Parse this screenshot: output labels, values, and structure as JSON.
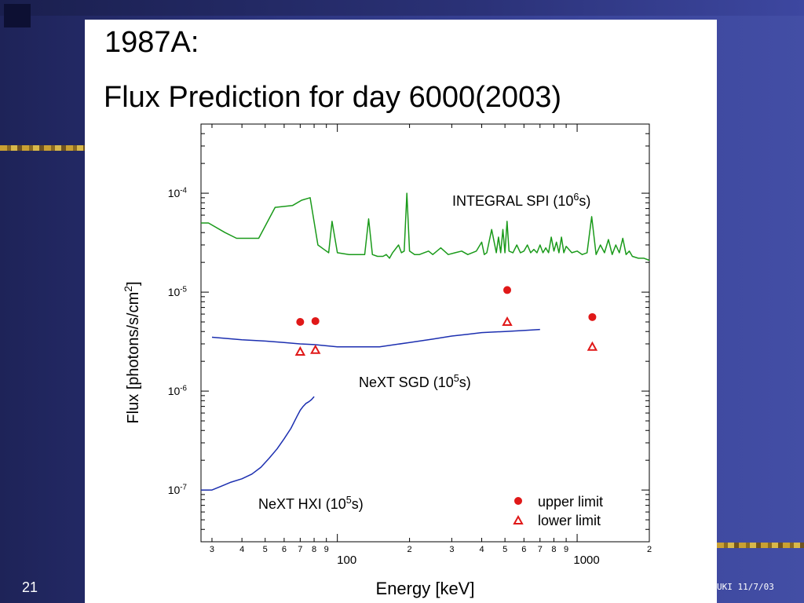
{
  "slide": {
    "title_line1": "1987A:",
    "title_line2": "Flux Prediction for day 6000(2003)",
    "page_number": "21",
    "footer": "UKI  11/7/03"
  },
  "chart_data": {
    "type": "scatter",
    "xscale": "log",
    "yscale": "log",
    "xlim": [
      27,
      2000
    ],
    "ylim": [
      3e-08,
      0.0005
    ],
    "xlabel": "Energy [keV]",
    "ylabel": "Flux [photons/s/cm",
    "ylabel_sup": "2",
    "ylabel_suffix": "]",
    "y_ticks": [
      {
        "value": 0.0001,
        "base": "10",
        "exp": "-4"
      },
      {
        "value": 1e-05,
        "base": "10",
        "exp": "-5"
      },
      {
        "value": 1e-06,
        "base": "10",
        "exp": "-6"
      },
      {
        "value": 1e-07,
        "base": "10",
        "exp": "-7"
      }
    ],
    "x_minor_labels": [
      {
        "value": 30,
        "label": "3"
      },
      {
        "value": 40,
        "label": "4"
      },
      {
        "value": 50,
        "label": "5"
      },
      {
        "value": 60,
        "label": "6"
      },
      {
        "value": 70,
        "label": "7"
      },
      {
        "value": 80,
        "label": "8"
      },
      {
        "value": 90,
        "label": "9"
      },
      {
        "value": 200,
        "label": "2"
      },
      {
        "value": 300,
        "label": "3"
      },
      {
        "value": 400,
        "label": "4"
      },
      {
        "value": 500,
        "label": "5"
      },
      {
        "value": 600,
        "label": "6"
      },
      {
        "value": 700,
        "label": "7"
      },
      {
        "value": 800,
        "label": "8"
      },
      {
        "value": 900,
        "label": "9"
      },
      {
        "value": 2000,
        "label": "2"
      }
    ],
    "x_major_labels": [
      {
        "value": 100,
        "label": "100"
      },
      {
        "value": 1000,
        "label": "1000"
      }
    ],
    "colors": {
      "integral": "#1a9a1a",
      "sgd": "#1c2fb0",
      "hxi": "#1c2fb0",
      "points": "#e01818"
    },
    "series": [
      {
        "name": "INTEGRAL SPI (10",
        "name_sup": "6",
        "name_suffix": "s)",
        "kind": "line",
        "x": [
          27,
          29,
          34,
          38,
          43,
          47,
          55,
          65,
          71,
          77,
          83,
          88,
          92,
          95,
          100,
          112,
          130,
          135,
          140,
          147,
          155,
          160,
          165,
          170,
          180,
          185,
          190,
          195,
          200,
          210,
          220,
          230,
          240,
          250,
          270,
          290,
          310,
          330,
          350,
          380,
          400,
          410,
          420,
          440,
          460,
          470,
          480,
          490,
          500,
          510,
          520,
          540,
          560,
          580,
          600,
          620,
          640,
          660,
          680,
          700,
          720,
          740,
          760,
          780,
          800,
          820,
          840,
          860,
          880,
          900,
          950,
          1000,
          1050,
          1100,
          1150,
          1200,
          1250,
          1300,
          1350,
          1400,
          1450,
          1500,
          1550,
          1600,
          1650,
          1700,
          1800,
          1900,
          2000
        ],
        "y": [
          5e-05,
          5e-05,
          4e-05,
          3.5e-05,
          3.5e-05,
          3.5e-05,
          7.2e-05,
          7.5e-05,
          8.5e-05,
          9e-05,
          3e-05,
          2.7e-05,
          2.5e-05,
          5.2e-05,
          2.5e-05,
          2.4e-05,
          2.4e-05,
          5.5e-05,
          2.4e-05,
          2.3e-05,
          2.3e-05,
          2.4e-05,
          2.2e-05,
          2.5e-05,
          3e-05,
          2.5e-05,
          2.6e-05,
          0.0001,
          2.6e-05,
          2.4e-05,
          2.4e-05,
          2.5e-05,
          2.6e-05,
          2.4e-05,
          2.8e-05,
          2.4e-05,
          2.5e-05,
          2.6e-05,
          2.4e-05,
          2.6e-05,
          3.2e-05,
          2.4e-05,
          2.5e-05,
          4.3e-05,
          2.5e-05,
          3.6e-05,
          2.5e-05,
          4.3e-05,
          2.5e-05,
          5.2e-05,
          2.6e-05,
          2.5e-05,
          3e-05,
          2.5e-05,
          2.6e-05,
          3e-05,
          2.5e-05,
          2.7e-05,
          2.5e-05,
          3e-05,
          2.5e-05,
          2.8e-05,
          2.5e-05,
          3.6e-05,
          2.6e-05,
          3.2e-05,
          2.5e-05,
          3.6e-05,
          2.5e-05,
          2.9e-05,
          2.5e-05,
          2.6e-05,
          2.4e-05,
          2.5e-05,
          5.8e-05,
          2.4e-05,
          3e-05,
          2.5e-05,
          3.4e-05,
          2.4e-05,
          3e-05,
          2.5e-05,
          3.5e-05,
          2.4e-05,
          2.6e-05,
          2.3e-05,
          2.2e-05,
          2.2e-05,
          2.1e-05
        ]
      },
      {
        "name": "NeXT SGD (10",
        "name_sup": "5",
        "name_suffix": "s)",
        "kind": "line",
        "x": [
          30,
          40,
          50,
          60,
          70,
          80,
          100,
          120,
          150,
          200,
          250,
          300,
          350,
          400,
          500,
          600,
          700
        ],
        "y": [
          3.5e-06,
          3.3e-06,
          3.2e-06,
          3.1e-06,
          3e-06,
          2.95e-06,
          2.8e-06,
          2.8e-06,
          2.8e-06,
          3.1e-06,
          3.35e-06,
          3.6e-06,
          3.75e-06,
          3.9e-06,
          4e-06,
          4.1e-06,
          4.2e-06
        ]
      },
      {
        "name": "NeXT HXI (10",
        "name_sup": "5",
        "name_suffix": "s)",
        "kind": "line",
        "x": [
          27,
          30,
          33,
          36,
          40,
          44,
          48,
          52,
          56,
          60,
          64,
          68,
          70,
          72,
          74,
          76,
          78,
          80
        ],
        "y": [
          1e-07,
          1e-07,
          1.1e-07,
          1.2e-07,
          1.3e-07,
          1.45e-07,
          1.7e-07,
          2.1e-07,
          2.6e-07,
          3.3e-07,
          4.2e-07,
          5.6e-07,
          6.4e-07,
          7e-07,
          7.5e-07,
          7.8e-07,
          8.2e-07,
          8.8e-07
        ]
      },
      {
        "name": "upper limit",
        "kind": "points",
        "marker": "circle",
        "x": [
          70,
          81,
          511,
          1157
        ],
        "y": [
          5e-06,
          5.1e-06,
          1.05e-05,
          5.6e-06
        ]
      },
      {
        "name": "lower limit",
        "kind": "points",
        "marker": "triangle",
        "x": [
          70,
          81,
          511,
          1157
        ],
        "y": [
          2.5e-06,
          2.6e-06,
          5e-06,
          2.8e-06
        ]
      }
    ]
  }
}
